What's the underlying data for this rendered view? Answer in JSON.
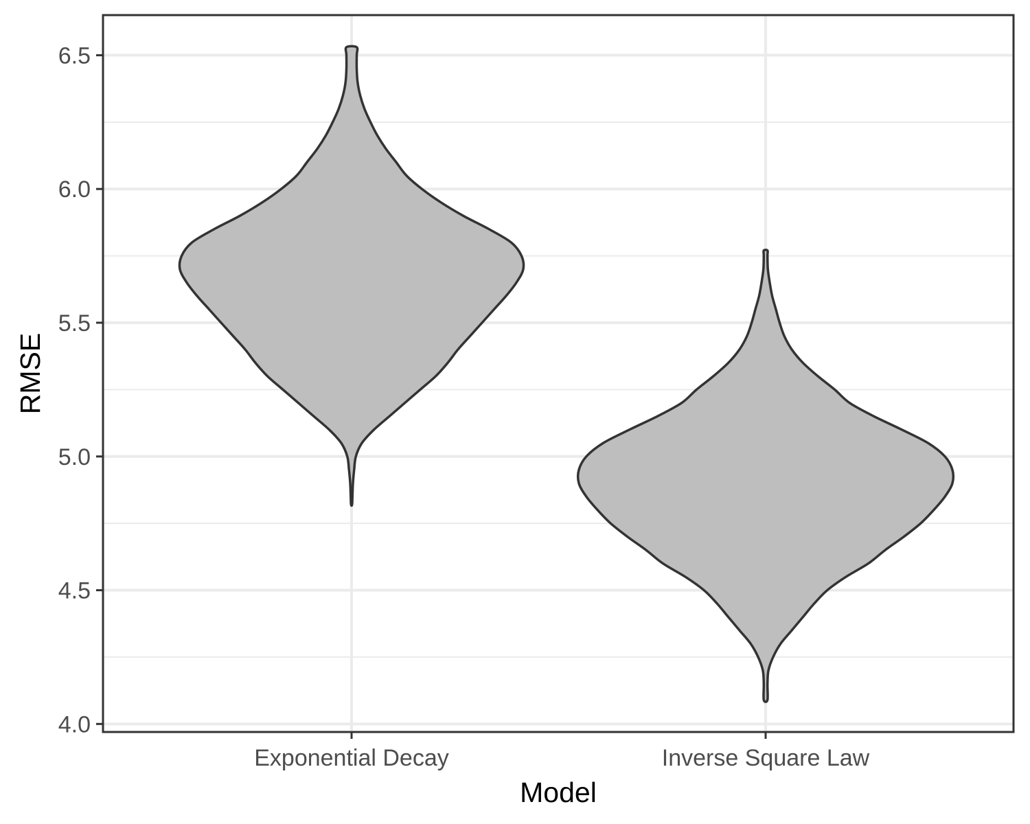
{
  "chart_data": {
    "type": "violin",
    "xlabel": "Model",
    "ylabel": "RMSE",
    "categories": [
      "Exponential Decay",
      "Inverse Square Law"
    ],
    "ylim": [
      3.97,
      6.65
    ],
    "y_ticks": [
      4.0,
      4.5,
      5.0,
      5.5,
      6.0,
      6.5
    ],
    "y_tick_labels": [
      "4.0",
      "4.5",
      "5.0",
      "5.5",
      "6.0",
      "6.5"
    ],
    "grid": true,
    "theme": "white background with light gray major and minor gridlines, black panel border",
    "colors": {
      "violin_fill": "#bebebe",
      "violin_outline": "#333333",
      "grid": "#ebebeb",
      "panel_border": "#333333",
      "tick_label": "#4d4d4d"
    },
    "violins": [
      {
        "category": "Exponential Decay",
        "y_min": 4.82,
        "y_max": 6.53,
        "density_profile": [
          [
            4.82,
            0.003
          ],
          [
            4.85,
            0.005
          ],
          [
            4.9,
            0.008
          ],
          [
            4.95,
            0.015
          ],
          [
            5.0,
            0.025
          ],
          [
            5.05,
            0.06
          ],
          [
            5.1,
            0.13
          ],
          [
            5.15,
            0.22
          ],
          [
            5.2,
            0.31
          ],
          [
            5.25,
            0.4
          ],
          [
            5.3,
            0.49
          ],
          [
            5.35,
            0.56
          ],
          [
            5.4,
            0.62
          ],
          [
            5.45,
            0.69
          ],
          [
            5.5,
            0.76
          ],
          [
            5.55,
            0.83
          ],
          [
            5.6,
            0.9
          ],
          [
            5.65,
            0.96
          ],
          [
            5.7,
            1.0
          ],
          [
            5.75,
            0.99
          ],
          [
            5.8,
            0.93
          ],
          [
            5.85,
            0.8
          ],
          [
            5.9,
            0.65
          ],
          [
            5.95,
            0.52
          ],
          [
            6.0,
            0.41
          ],
          [
            6.05,
            0.32
          ],
          [
            6.1,
            0.26
          ],
          [
            6.15,
            0.2
          ],
          [
            6.2,
            0.15
          ],
          [
            6.25,
            0.11
          ],
          [
            6.3,
            0.075
          ],
          [
            6.35,
            0.05
          ],
          [
            6.4,
            0.035
          ],
          [
            6.45,
            0.03
          ],
          [
            6.5,
            0.03
          ],
          [
            6.53,
            0.03
          ]
        ]
      },
      {
        "category": "Inverse Square Law",
        "y_min": 4.09,
        "y_max": 5.77,
        "density_profile": [
          [
            4.09,
            0.01
          ],
          [
            4.15,
            0.01
          ],
          [
            4.2,
            0.015
          ],
          [
            4.25,
            0.04
          ],
          [
            4.3,
            0.08
          ],
          [
            4.35,
            0.14
          ],
          [
            4.4,
            0.2
          ],
          [
            4.45,
            0.26
          ],
          [
            4.5,
            0.33
          ],
          [
            4.55,
            0.43
          ],
          [
            4.6,
            0.55
          ],
          [
            4.65,
            0.64
          ],
          [
            4.7,
            0.74
          ],
          [
            4.75,
            0.83
          ],
          [
            4.8,
            0.9
          ],
          [
            4.85,
            0.96
          ],
          [
            4.9,
            1.0
          ],
          [
            4.95,
            1.0
          ],
          [
            5.0,
            0.96
          ],
          [
            5.05,
            0.87
          ],
          [
            5.1,
            0.73
          ],
          [
            5.15,
            0.58
          ],
          [
            5.2,
            0.45
          ],
          [
            5.25,
            0.37
          ],
          [
            5.3,
            0.28
          ],
          [
            5.35,
            0.2
          ],
          [
            5.4,
            0.14
          ],
          [
            5.45,
            0.1
          ],
          [
            5.5,
            0.075
          ],
          [
            5.55,
            0.055
          ],
          [
            5.6,
            0.035
          ],
          [
            5.65,
            0.022
          ],
          [
            5.7,
            0.012
          ],
          [
            5.75,
            0.01
          ],
          [
            5.77,
            0.01
          ]
        ]
      }
    ]
  }
}
